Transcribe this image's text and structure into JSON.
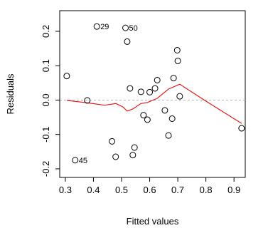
{
  "chart_data": {
    "type": "scatter",
    "title": "",
    "xlabel": "Fitted values",
    "ylabel": "Residuals",
    "xlim": [
      0.28,
      0.94
    ],
    "ylim": [
      -0.225,
      0.26
    ],
    "xticks": [
      0.3,
      0.4,
      0.5,
      0.6,
      0.7,
      0.8,
      0.9
    ],
    "yticks": [
      -0.2,
      -0.1,
      0.0,
      0.1,
      0.2
    ],
    "x_tick_labels": [
      "0.3",
      "0.4",
      "0.5",
      "0.6",
      "0.7",
      "0.8",
      "0.9"
    ],
    "y_tick_labels": [
      "-0.2",
      "-0.1",
      "0.0",
      "0.1",
      "0.2"
    ],
    "reference_line_y": 0,
    "reference_line_color": "#b3b3b3",
    "point_color": "#000000",
    "smooth_color": "#e41a1c",
    "points": [
      {
        "x": 0.305,
        "y": 0.07
      },
      {
        "x": 0.335,
        "y": -0.175,
        "label": "45"
      },
      {
        "x": 0.378,
        "y": -0.001
      },
      {
        "x": 0.412,
        "y": 0.214,
        "label": "29"
      },
      {
        "x": 0.466,
        "y": -0.12
      },
      {
        "x": 0.479,
        "y": -0.165
      },
      {
        "x": 0.514,
        "y": 0.21,
        "label": "50"
      },
      {
        "x": 0.52,
        "y": 0.17
      },
      {
        "x": 0.53,
        "y": 0.034
      },
      {
        "x": 0.54,
        "y": -0.16
      },
      {
        "x": 0.546,
        "y": -0.138
      },
      {
        "x": 0.569,
        "y": 0.024
      },
      {
        "x": 0.578,
        "y": -0.044
      },
      {
        "x": 0.592,
        "y": -0.057
      },
      {
        "x": 0.6,
        "y": 0.023
      },
      {
        "x": 0.619,
        "y": 0.034
      },
      {
        "x": 0.627,
        "y": 0.058
      },
      {
        "x": 0.654,
        "y": -0.03
      },
      {
        "x": 0.667,
        "y": -0.103
      },
      {
        "x": 0.68,
        "y": -0.054
      },
      {
        "x": 0.685,
        "y": 0.064
      },
      {
        "x": 0.698,
        "y": 0.145
      },
      {
        "x": 0.7,
        "y": 0.114
      },
      {
        "x": 0.707,
        "y": 0.011
      },
      {
        "x": 0.927,
        "y": -0.082
      }
    ],
    "smooth_line": {
      "x": [
        0.305,
        0.378,
        0.44,
        0.48,
        0.505,
        0.52,
        0.54,
        0.569,
        0.592,
        0.627,
        0.667,
        0.707,
        0.8,
        0.927
      ],
      "y": [
        -0.001,
        -0.008,
        -0.015,
        -0.01,
        -0.02,
        -0.032,
        -0.026,
        -0.01,
        -0.007,
        0.005,
        0.032,
        0.046,
        -0.003,
        -0.068
      ]
    }
  }
}
